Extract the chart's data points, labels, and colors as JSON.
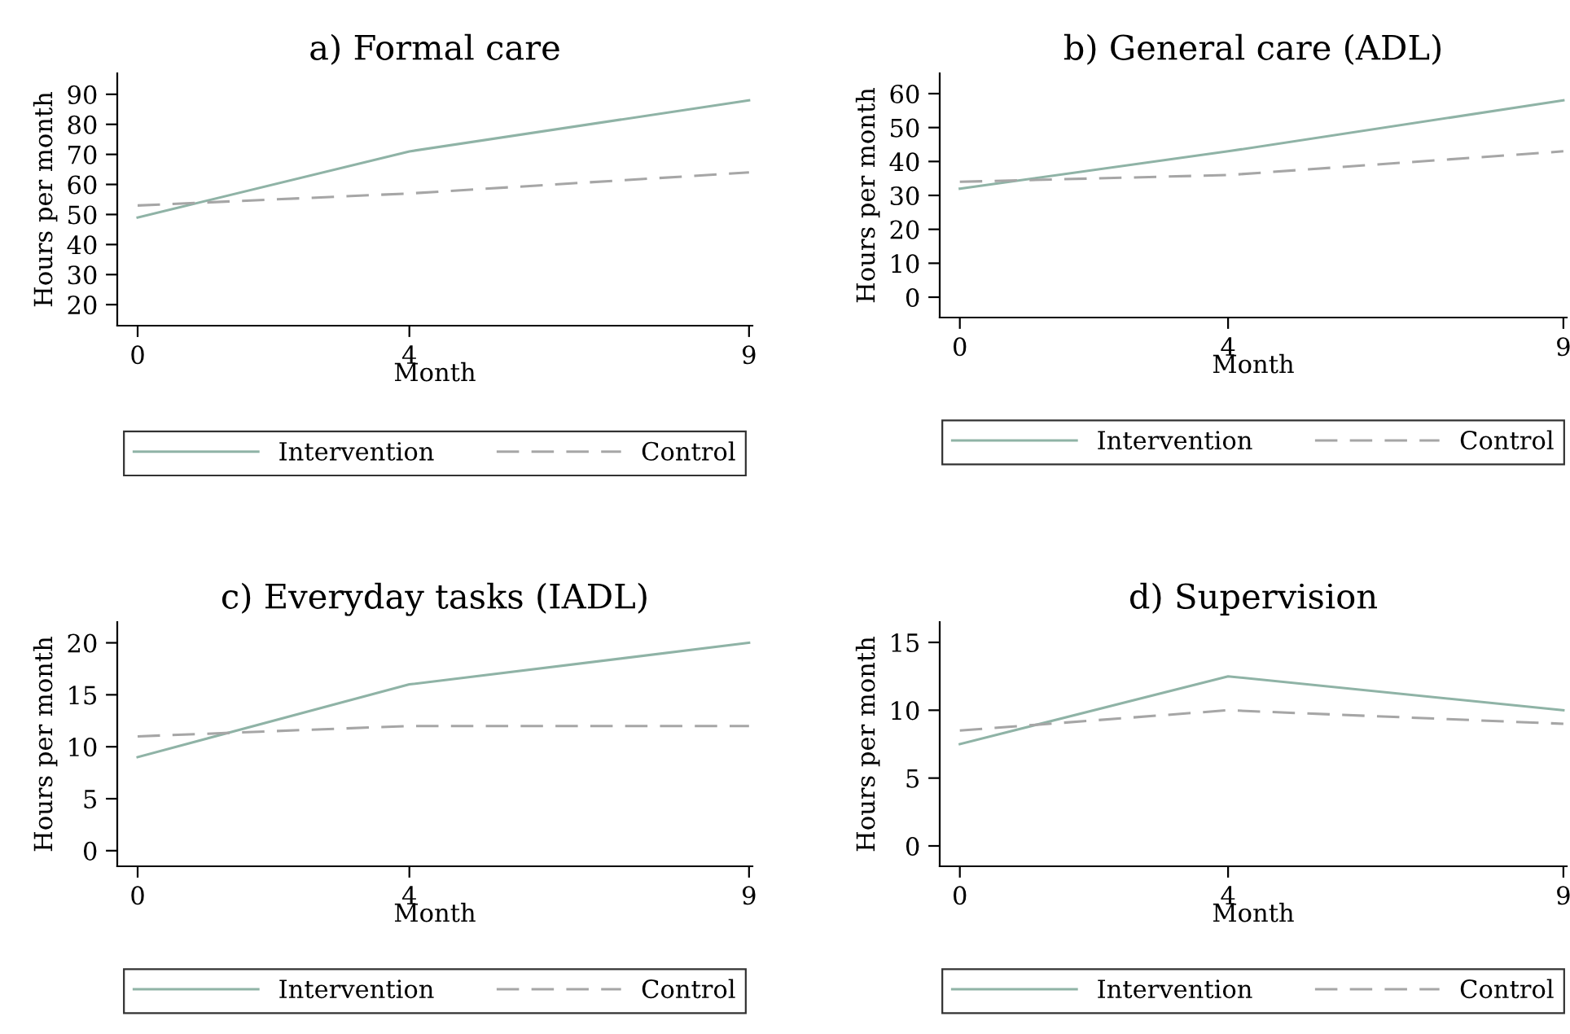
{
  "chart_data": [
    {
      "type": "line",
      "title": "a) Formal care",
      "xlabel": "Month",
      "ylabel": "Hours per month",
      "x": [
        0,
        4,
        9
      ],
      "xlim": [
        -0.3,
        9.05
      ],
      "xticks": [
        0,
        4,
        9
      ],
      "ylim": [
        13,
        97
      ],
      "yticks": [
        20,
        30,
        40,
        50,
        60,
        70,
        80,
        90
      ],
      "grid": false,
      "legend": "bottom",
      "series": [
        {
          "name": "Intervention",
          "color": "#8fb3a6",
          "line_style": "solid",
          "values": [
            49,
            71,
            88
          ]
        },
        {
          "name": "Control",
          "color": "#a6a6a6",
          "line_style": "dashed",
          "values": [
            53,
            57,
            64
          ]
        }
      ]
    },
    {
      "type": "line",
      "title": "b) General care (ADL)",
      "xlabel": "Month",
      "ylabel": "Hours per month",
      "x": [
        0,
        4,
        9
      ],
      "xlim": [
        -0.3,
        9.05
      ],
      "xticks": [
        0,
        4,
        9
      ],
      "ylim": [
        -6,
        66
      ],
      "yticks": [
        0,
        10,
        20,
        30,
        40,
        50,
        60
      ],
      "grid": false,
      "legend": "bottom",
      "series": [
        {
          "name": "Intervention",
          "color": "#8fb3a6",
          "line_style": "solid",
          "values": [
            32,
            43,
            58
          ]
        },
        {
          "name": "Control",
          "color": "#a6a6a6",
          "line_style": "dashed",
          "values": [
            34,
            36,
            43
          ]
        }
      ]
    },
    {
      "type": "line",
      "title": "c) Everyday tasks (IADL)",
      "xlabel": "Month",
      "ylabel": "Hours per month",
      "x": [
        0,
        4,
        9
      ],
      "xlim": [
        -0.3,
        9.05
      ],
      "xticks": [
        0,
        4,
        9
      ],
      "ylim": [
        -1.5,
        22
      ],
      "yticks": [
        0,
        5,
        10,
        15,
        20
      ],
      "grid": false,
      "legend": "bottom",
      "series": [
        {
          "name": "Intervention",
          "color": "#8fb3a6",
          "line_style": "solid",
          "values": [
            9,
            16,
            20
          ]
        },
        {
          "name": "Control",
          "color": "#a6a6a6",
          "line_style": "dashed",
          "values": [
            11,
            12,
            12
          ]
        }
      ]
    },
    {
      "type": "line",
      "title": "d) Supervision",
      "xlabel": "Month",
      "ylabel": "Hours per month",
      "x": [
        0,
        4,
        9
      ],
      "xlim": [
        -0.3,
        9.05
      ],
      "xticks": [
        0,
        4,
        9
      ],
      "ylim": [
        -1.5,
        16.5
      ],
      "yticks": [
        0,
        5,
        10,
        15
      ],
      "grid": false,
      "legend": "bottom",
      "series": [
        {
          "name": "Intervention",
          "color": "#8fb3a6",
          "line_style": "solid",
          "values": [
            7.5,
            12.5,
            10
          ]
        },
        {
          "name": "Control",
          "color": "#a6a6a6",
          "line_style": "dashed",
          "values": [
            8.5,
            10,
            9
          ]
        }
      ]
    }
  ]
}
